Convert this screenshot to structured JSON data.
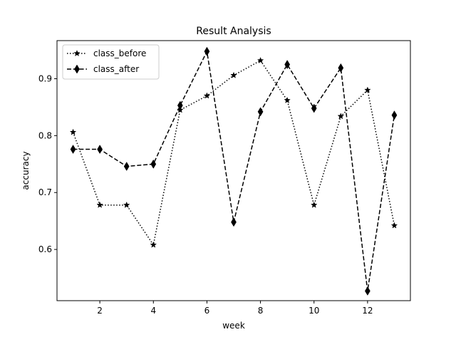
{
  "chart_data": {
    "type": "line",
    "title": "Result Analysis",
    "xlabel": "week",
    "ylabel": "accuracy",
    "x": [
      1,
      2,
      3,
      4,
      5,
      6,
      7,
      8,
      9,
      10,
      11,
      12,
      13
    ],
    "xlim": [
      0.4,
      13.6
    ],
    "ylim": [
      0.51,
      0.967
    ],
    "xticks": [
      2,
      4,
      6,
      8,
      10,
      12
    ],
    "yticks": [
      0.6,
      0.7,
      0.8,
      0.9
    ],
    "grid": false,
    "legend_position": "top-left",
    "series": [
      {
        "name": "class_before",
        "line_style": "dotted",
        "marker": "star",
        "color": "#000000",
        "values": [
          0.806,
          0.678,
          0.678,
          0.608,
          0.845,
          0.87,
          0.906,
          0.932,
          0.862,
          0.678,
          0.834,
          0.88,
          0.642
        ]
      },
      {
        "name": "class_after",
        "line_style": "dashed",
        "marker": "thin-diamond",
        "color": "#000000",
        "values": [
          0.776,
          0.776,
          0.746,
          0.75,
          0.853,
          0.948,
          0.648,
          0.842,
          0.925,
          0.848,
          0.919,
          0.527,
          0.836
        ]
      }
    ]
  }
}
